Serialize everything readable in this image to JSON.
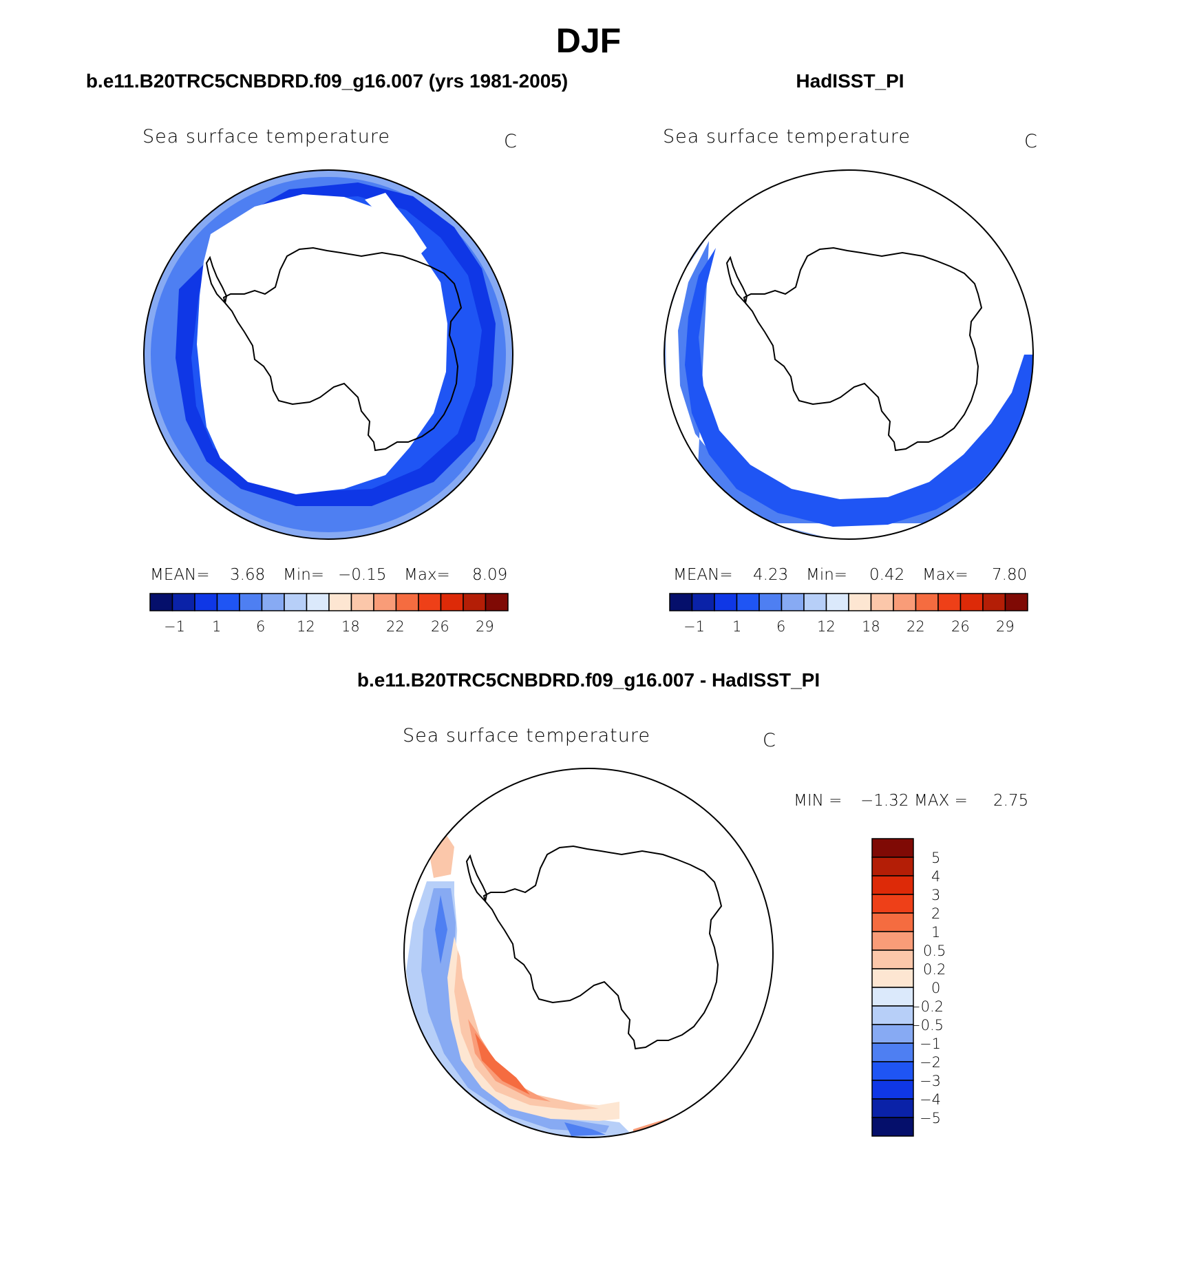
{
  "title": "DJF",
  "colors": {
    "c1": "#050f6b",
    "c2": "#0a22a8",
    "c3": "#0f37e6",
    "c4": "#1f55f4",
    "c5": "#4e7ff2",
    "c6": "#87aaf3",
    "c7": "#b7cff8",
    "c8": "#dbe9fb",
    "w1": "#fde6d2",
    "w2": "#fbc7aa",
    "w3": "#f99c78",
    "w4": "#f56c40",
    "w5": "#ee4018",
    "w6": "#dd2a08",
    "w7": "#b41e06",
    "w8": "#7f0a05",
    "land_outline": "#000000",
    "frame": "#000000"
  },
  "panels": [
    {
      "title": "b.e11.B20TRC5CNBDRD.f09_g16.007 (yrs 1981-2005)",
      "variable": "Sea surface temperature",
      "units": "C",
      "stats": {
        "mean_label": "MEAN=",
        "mean": "3.68",
        "min_label": "Min=",
        "min": "−0.15",
        "max_label": "Max=",
        "max": "8.09"
      },
      "colorbar_ticks": [
        "−1",
        "1",
        "6",
        "12",
        "18",
        "22",
        "26",
        "29"
      ]
    },
    {
      "title": "HadISST_PI",
      "variable": "Sea surface temperature",
      "units": "C",
      "stats": {
        "mean_label": "MEAN=",
        "mean": "4.23",
        "min_label": "Min=",
        "min": "0.42",
        "max_label": "Max=",
        "max": "7.80"
      },
      "colorbar_ticks": [
        "−1",
        "1",
        "6",
        "12",
        "18",
        "22",
        "26",
        "29"
      ]
    }
  ],
  "diff": {
    "title": "b.e11.B20TRC5CNBDRD.f09_g16.007 - HadISST_PI",
    "variable": "Sea surface temperature",
    "units": "C",
    "min_label": "MIN =",
    "min": "−1.32",
    "max_label": "MAX =",
    "max": "2.75",
    "colorbar_ticks": [
      "5",
      "4",
      "3",
      "2",
      "1",
      "0.5",
      "0.2",
      "0",
      "−0.2",
      "−0.5",
      "−1",
      "−2",
      "−3",
      "−4",
      "−5"
    ]
  }
}
